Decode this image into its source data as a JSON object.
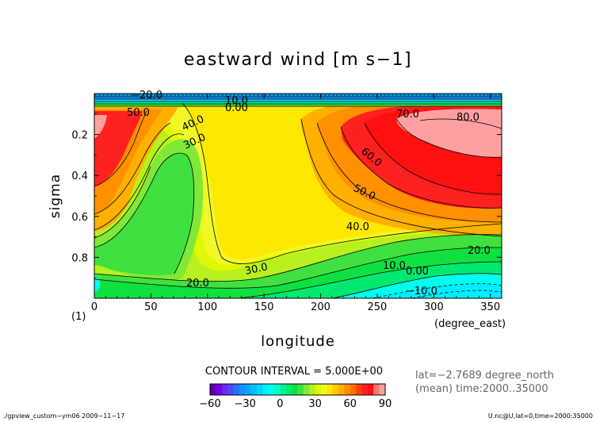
{
  "chart_data": {
    "type": "heatmap",
    "title": "eastward wind [m s−1]",
    "xlabel": "longitude",
    "xunit": "(degree_east)",
    "ylabel": "sigma",
    "ylabel_suffix": "(1)",
    "xlim": [
      0,
      360
    ],
    "ylim": [
      1.0,
      0.0
    ],
    "x_ticks": [
      "0",
      "50",
      "100",
      "150",
      "200",
      "250",
      "300",
      "350"
    ],
    "y_ticks": [
      "0.2",
      "0.4",
      "0.6",
      "0.8"
    ],
    "contour_interval_text": "CONTOUR INTERVAL = 5.000E+00",
    "info_line1": "lat=−2.7689 degree_north",
    "info_line2": "(mean) time:2000..35000",
    "footer_left": "./gpview_custom−ym06  2009−11−17",
    "footer_right": "U.nc@U,lat=0,time=2000:35000",
    "colorbar": {
      "levels": [
        -60,
        -55,
        -50,
        -45,
        -40,
        -35,
        -30,
        -25,
        -20,
        -15,
        -10,
        -5,
        0,
        5,
        10,
        15,
        20,
        25,
        30,
        35,
        40,
        45,
        50,
        55,
        60,
        65,
        70,
        75,
        80,
        85,
        90
      ],
      "colors": [
        "#5a00b8",
        "#7a00e0",
        "#6a28f0",
        "#4848ff",
        "#2870ff",
        "#1890ff",
        "#00aaff",
        "#00c0ff",
        "#00d8ff",
        "#00eeff",
        "#00ffee",
        "#00ffc8",
        "#00f098",
        "#00e870",
        "#10e040",
        "#40e040",
        "#80e838",
        "#b8f020",
        "#e0f800",
        "#f0f828",
        "#ffe800",
        "#ffc800",
        "#ffb000",
        "#ff9000",
        "#ff7000",
        "#ff4000",
        "#ff2020",
        "#ff1010",
        "#ff7878",
        "#ffa0a0"
      ],
      "tick_labels": [
        "−60",
        "−30",
        "0",
        "30",
        "60",
        "90"
      ]
    },
    "contour_labels": [
      "−20.0",
      "50.0",
      "40.0",
      "30.0",
      "10.0",
      "0.00",
      "70.0",
      "80.0",
      "60.0",
      "50.0",
      "40.0",
      "20.0",
      "10.0",
      "0.00",
      "−10.0",
      "30.0",
      "20.0"
    ]
  }
}
